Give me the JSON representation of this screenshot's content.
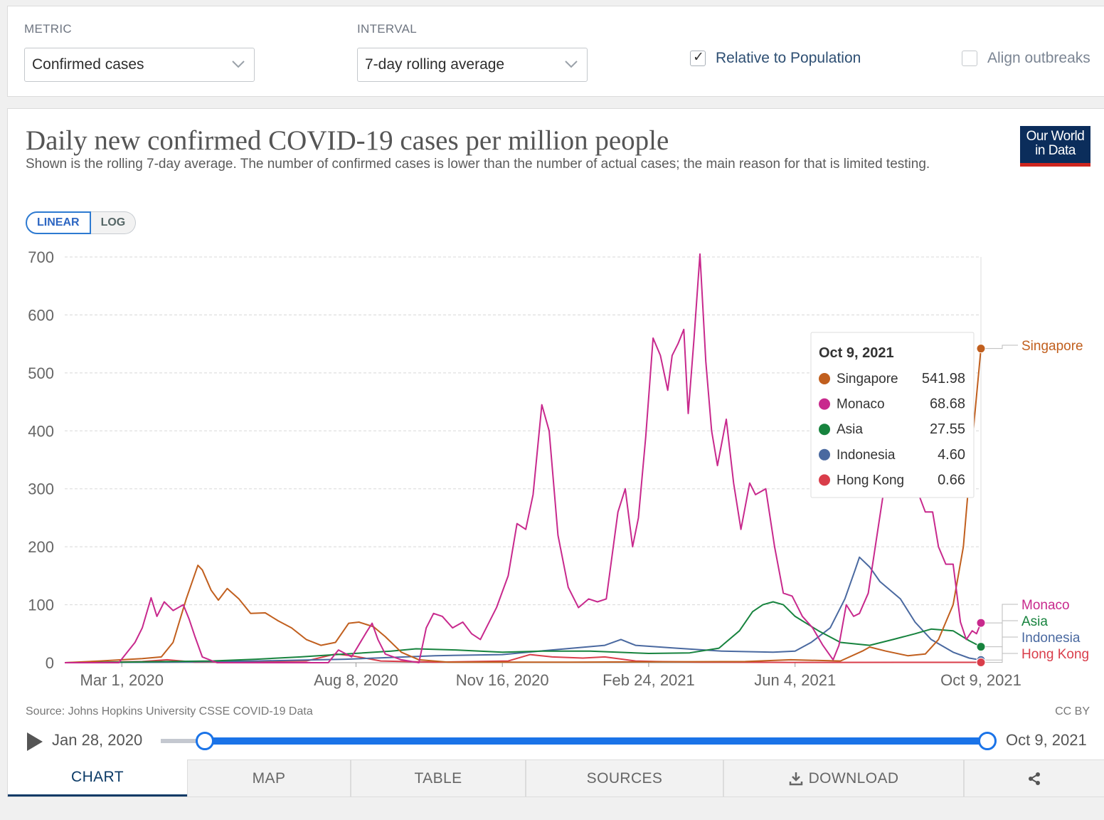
{
  "controls": {
    "metric_label": "METRIC",
    "metric_value": "Confirmed cases",
    "interval_label": "INTERVAL",
    "interval_value": "7-day rolling average",
    "relative_label": "Relative to Population",
    "relative_checked": true,
    "align_label": "Align outbreaks",
    "align_checked": false
  },
  "header": {
    "title": "Daily new confirmed COVID-19 cases per million people",
    "subtitle": "Shown is the rolling 7-day average. The number of confirmed cases is lower than the number of actual cases; the main reason for that is limited testing.",
    "logo_line1": "Our World",
    "logo_line2": "in Data"
  },
  "scale_toggle": {
    "linear": "LINEAR",
    "log": "LOG",
    "active": "linear"
  },
  "footer": {
    "source": "Source: Johns Hopkins University CSSE COVID-19 Data",
    "license": "CC BY"
  },
  "timeline": {
    "start": "Jan 28, 2020",
    "end": "Oct 9, 2021",
    "play_icon": "play-icon"
  },
  "tabs": {
    "chart": "CHART",
    "map": "MAP",
    "table": "TABLE",
    "sources": "SOURCES",
    "download": "DOWNLOAD",
    "download_icon": "download-icon",
    "share_icon": "share-icon"
  },
  "tooltip": {
    "date": "Oct 9, 2021",
    "rows": [
      {
        "name": "Singapore",
        "value": "541.98",
        "color": "#c15f1e"
      },
      {
        "name": "Monaco",
        "value": "68.68",
        "color": "#c8298d"
      },
      {
        "name": "Asia",
        "value": "27.55",
        "color": "#17833e"
      },
      {
        "name": "Indonesia",
        "value": "4.60",
        "color": "#4a69a0"
      },
      {
        "name": "Hong Kong",
        "value": "0.66",
        "color": "#d93d4a"
      }
    ]
  },
  "chart_data": {
    "type": "line",
    "title": "Daily new confirmed COVID-19 cases per million people",
    "ylim": [
      0,
      700
    ],
    "y_ticks": [
      0,
      100,
      200,
      300,
      400,
      500,
      600,
      700
    ],
    "x_ticks": [
      "Mar 1, 2020",
      "Aug 8, 2020",
      "Nov 16, 2020",
      "Feb 24, 2021",
      "Jun 4, 2021",
      "Oct 9, 2021"
    ],
    "x_range": [
      "2020-01-22",
      "2021-10-09"
    ],
    "grid": "horizontal dashed",
    "legend": "right, end-of-line labels",
    "series": [
      {
        "name": "Singapore",
        "color": "#c15f1e",
        "points": [
          [
            "2020-01-22",
            0
          ],
          [
            "2020-02-15",
            3
          ],
          [
            "2020-03-15",
            7
          ],
          [
            "2020-03-28",
            10
          ],
          [
            "2020-04-05",
            35
          ],
          [
            "2020-04-14",
            110
          ],
          [
            "2020-04-22",
            168
          ],
          [
            "2020-04-25",
            160
          ],
          [
            "2020-05-01",
            125
          ],
          [
            "2020-05-06",
            108
          ],
          [
            "2020-05-12",
            128
          ],
          [
            "2020-05-20",
            110
          ],
          [
            "2020-05-28",
            85
          ],
          [
            "2020-06-07",
            86
          ],
          [
            "2020-06-16",
            72
          ],
          [
            "2020-06-25",
            60
          ],
          [
            "2020-07-05",
            40
          ],
          [
            "2020-07-15",
            30
          ],
          [
            "2020-07-25",
            35
          ],
          [
            "2020-08-03",
            68
          ],
          [
            "2020-08-10",
            70
          ],
          [
            "2020-08-20",
            62
          ],
          [
            "2020-08-28",
            45
          ],
          [
            "2020-09-08",
            18
          ],
          [
            "2020-09-20",
            5
          ],
          [
            "2020-10-10",
            1
          ],
          [
            "2021-01-01",
            1
          ],
          [
            "2021-05-01",
            2
          ],
          [
            "2021-06-01",
            5
          ],
          [
            "2021-07-05",
            3
          ],
          [
            "2021-07-20",
            20
          ],
          [
            "2021-07-25",
            27
          ],
          [
            "2021-08-05",
            20
          ],
          [
            "2021-08-20",
            12
          ],
          [
            "2021-09-01",
            15
          ],
          [
            "2021-09-10",
            40
          ],
          [
            "2021-09-20",
            100
          ],
          [
            "2021-09-27",
            200
          ],
          [
            "2021-10-03",
            380
          ],
          [
            "2021-10-09",
            541.98
          ]
        ]
      },
      {
        "name": "Monaco",
        "color": "#c8298d",
        "points": [
          [
            "2020-01-22",
            0
          ],
          [
            "2020-02-28",
            0
          ],
          [
            "2020-03-10",
            35
          ],
          [
            "2020-03-15",
            60
          ],
          [
            "2020-03-21",
            112
          ],
          [
            "2020-03-25",
            80
          ],
          [
            "2020-03-30",
            105
          ],
          [
            "2020-04-05",
            90
          ],
          [
            "2020-04-12",
            100
          ],
          [
            "2020-04-16",
            75
          ],
          [
            "2020-04-20",
            45
          ],
          [
            "2020-04-25",
            10
          ],
          [
            "2020-05-05",
            0
          ],
          [
            "2020-07-20",
            0
          ],
          [
            "2020-07-27",
            22
          ],
          [
            "2020-08-05",
            10
          ],
          [
            "2020-08-15",
            52
          ],
          [
            "2020-08-19",
            68
          ],
          [
            "2020-08-23",
            40
          ],
          [
            "2020-08-28",
            15
          ],
          [
            "2020-09-08",
            5
          ],
          [
            "2020-09-20",
            0
          ],
          [
            "2020-09-25",
            60
          ],
          [
            "2020-09-30",
            85
          ],
          [
            "2020-10-06",
            80
          ],
          [
            "2020-10-13",
            60
          ],
          [
            "2020-10-20",
            70
          ],
          [
            "2020-10-26",
            50
          ],
          [
            "2020-11-01",
            40
          ],
          [
            "2020-11-06",
            65
          ],
          [
            "2020-11-12",
            95
          ],
          [
            "2020-11-20",
            150
          ],
          [
            "2020-11-26",
            240
          ],
          [
            "2020-12-02",
            230
          ],
          [
            "2020-12-07",
            290
          ],
          [
            "2020-12-13",
            445
          ],
          [
            "2020-12-18",
            400
          ],
          [
            "2020-12-24",
            220
          ],
          [
            "2020-12-31",
            130
          ],
          [
            "2021-01-07",
            95
          ],
          [
            "2021-01-14",
            110
          ],
          [
            "2021-01-20",
            105
          ],
          [
            "2021-01-26",
            110
          ],
          [
            "2021-02-03",
            260
          ],
          [
            "2021-02-08",
            300
          ],
          [
            "2021-02-13",
            200
          ],
          [
            "2021-02-17",
            250
          ],
          [
            "2021-02-22",
            390
          ],
          [
            "2021-02-27",
            560
          ],
          [
            "2021-03-04",
            530
          ],
          [
            "2021-03-09",
            470
          ],
          [
            "2021-03-12",
            530
          ],
          [
            "2021-03-16",
            550
          ],
          [
            "2021-03-20",
            575
          ],
          [
            "2021-03-23",
            430
          ],
          [
            "2021-03-27",
            560
          ],
          [
            "2021-03-31",
            705
          ],
          [
            "2021-04-04",
            520
          ],
          [
            "2021-04-08",
            400
          ],
          [
            "2021-04-12",
            340
          ],
          [
            "2021-04-18",
            420
          ],
          [
            "2021-04-23",
            310
          ],
          [
            "2021-04-28",
            230
          ],
          [
            "2021-05-04",
            310
          ],
          [
            "2021-05-08",
            290
          ],
          [
            "2021-05-15",
            300
          ],
          [
            "2021-05-21",
            200
          ],
          [
            "2021-05-27",
            120
          ],
          [
            "2021-06-02",
            115
          ],
          [
            "2021-06-09",
            80
          ],
          [
            "2021-06-16",
            60
          ],
          [
            "2021-06-23",
            30
          ],
          [
            "2021-06-30",
            5
          ],
          [
            "2021-07-04",
            30
          ],
          [
            "2021-07-09",
            100
          ],
          [
            "2021-07-14",
            80
          ],
          [
            "2021-07-18",
            85
          ],
          [
            "2021-07-24",
            120
          ],
          [
            "2021-07-30",
            220
          ],
          [
            "2021-08-05",
            320
          ],
          [
            "2021-08-12",
            400
          ],
          [
            "2021-08-19",
            420
          ],
          [
            "2021-08-26",
            300
          ],
          [
            "2021-09-01",
            260
          ],
          [
            "2021-09-06",
            260
          ],
          [
            "2021-09-10",
            200
          ],
          [
            "2021-09-15",
            170
          ],
          [
            "2021-09-20",
            170
          ],
          [
            "2021-09-25",
            70
          ],
          [
            "2021-09-29",
            40
          ],
          [
            "2021-10-03",
            55
          ],
          [
            "2021-10-06",
            50
          ],
          [
            "2021-10-09",
            68.68
          ]
        ]
      },
      {
        "name": "Asia",
        "color": "#17833e",
        "points": [
          [
            "2020-01-22",
            0
          ],
          [
            "2020-03-01",
            1
          ],
          [
            "2020-04-01",
            2
          ],
          [
            "2020-05-01",
            3
          ],
          [
            "2020-06-01",
            6
          ],
          [
            "2020-07-01",
            10
          ],
          [
            "2020-08-01",
            15
          ],
          [
            "2020-09-01",
            20
          ],
          [
            "2020-09-18",
            24
          ],
          [
            "2020-10-15",
            22
          ],
          [
            "2020-11-16",
            18
          ],
          [
            "2020-12-15",
            20
          ],
          [
            "2021-01-15",
            20
          ],
          [
            "2021-02-24",
            16
          ],
          [
            "2021-03-24",
            17
          ],
          [
            "2021-04-13",
            25
          ],
          [
            "2021-04-27",
            55
          ],
          [
            "2021-05-06",
            88
          ],
          [
            "2021-05-13",
            100
          ],
          [
            "2021-05-20",
            105
          ],
          [
            "2021-05-27",
            100
          ],
          [
            "2021-06-04",
            80
          ],
          [
            "2021-06-20",
            55
          ],
          [
            "2021-07-05",
            35
          ],
          [
            "2021-07-25",
            30
          ],
          [
            "2021-08-10",
            40
          ],
          [
            "2021-08-25",
            50
          ],
          [
            "2021-09-05",
            58
          ],
          [
            "2021-09-20",
            55
          ],
          [
            "2021-10-01",
            38
          ],
          [
            "2021-10-09",
            27.55
          ]
        ]
      },
      {
        "name": "Indonesia",
        "color": "#4a69a0",
        "points": [
          [
            "2020-01-22",
            0
          ],
          [
            "2020-04-01",
            1
          ],
          [
            "2020-06-01",
            3
          ],
          [
            "2020-08-01",
            6
          ],
          [
            "2020-10-01",
            12
          ],
          [
            "2020-11-16",
            14
          ],
          [
            "2020-12-20",
            22
          ],
          [
            "2021-01-25",
            30
          ],
          [
            "2021-02-05",
            40
          ],
          [
            "2021-02-15",
            30
          ],
          [
            "2021-03-15",
            25
          ],
          [
            "2021-04-15",
            20
          ],
          [
            "2021-05-20",
            18
          ],
          [
            "2021-06-04",
            20
          ],
          [
            "2021-06-15",
            35
          ],
          [
            "2021-06-28",
            60
          ],
          [
            "2021-07-08",
            110
          ],
          [
            "2021-07-15",
            160
          ],
          [
            "2021-07-18",
            182
          ],
          [
            "2021-07-25",
            165
          ],
          [
            "2021-08-01",
            140
          ],
          [
            "2021-08-15",
            110
          ],
          [
            "2021-08-25",
            70
          ],
          [
            "2021-09-05",
            40
          ],
          [
            "2021-09-20",
            18
          ],
          [
            "2021-10-01",
            8
          ],
          [
            "2021-10-09",
            4.6
          ]
        ]
      },
      {
        "name": "Hong Kong",
        "color": "#d93d4a",
        "points": [
          [
            "2020-01-22",
            0
          ],
          [
            "2020-03-15",
            2
          ],
          [
            "2020-04-01",
            5
          ],
          [
            "2020-04-20",
            1
          ],
          [
            "2020-07-05",
            3
          ],
          [
            "2020-07-25",
            15
          ],
          [
            "2020-08-05",
            12
          ],
          [
            "2020-08-25",
            3
          ],
          [
            "2020-10-01",
            1
          ],
          [
            "2020-11-20",
            3
          ],
          [
            "2020-12-05",
            14
          ],
          [
            "2020-12-20",
            10
          ],
          [
            "2021-01-10",
            8
          ],
          [
            "2021-01-25",
            10
          ],
          [
            "2021-02-15",
            3
          ],
          [
            "2021-03-01",
            2
          ],
          [
            "2021-04-01",
            1
          ],
          [
            "2021-06-01",
            0.5
          ],
          [
            "2021-10-09",
            0.66
          ]
        ]
      }
    ]
  }
}
